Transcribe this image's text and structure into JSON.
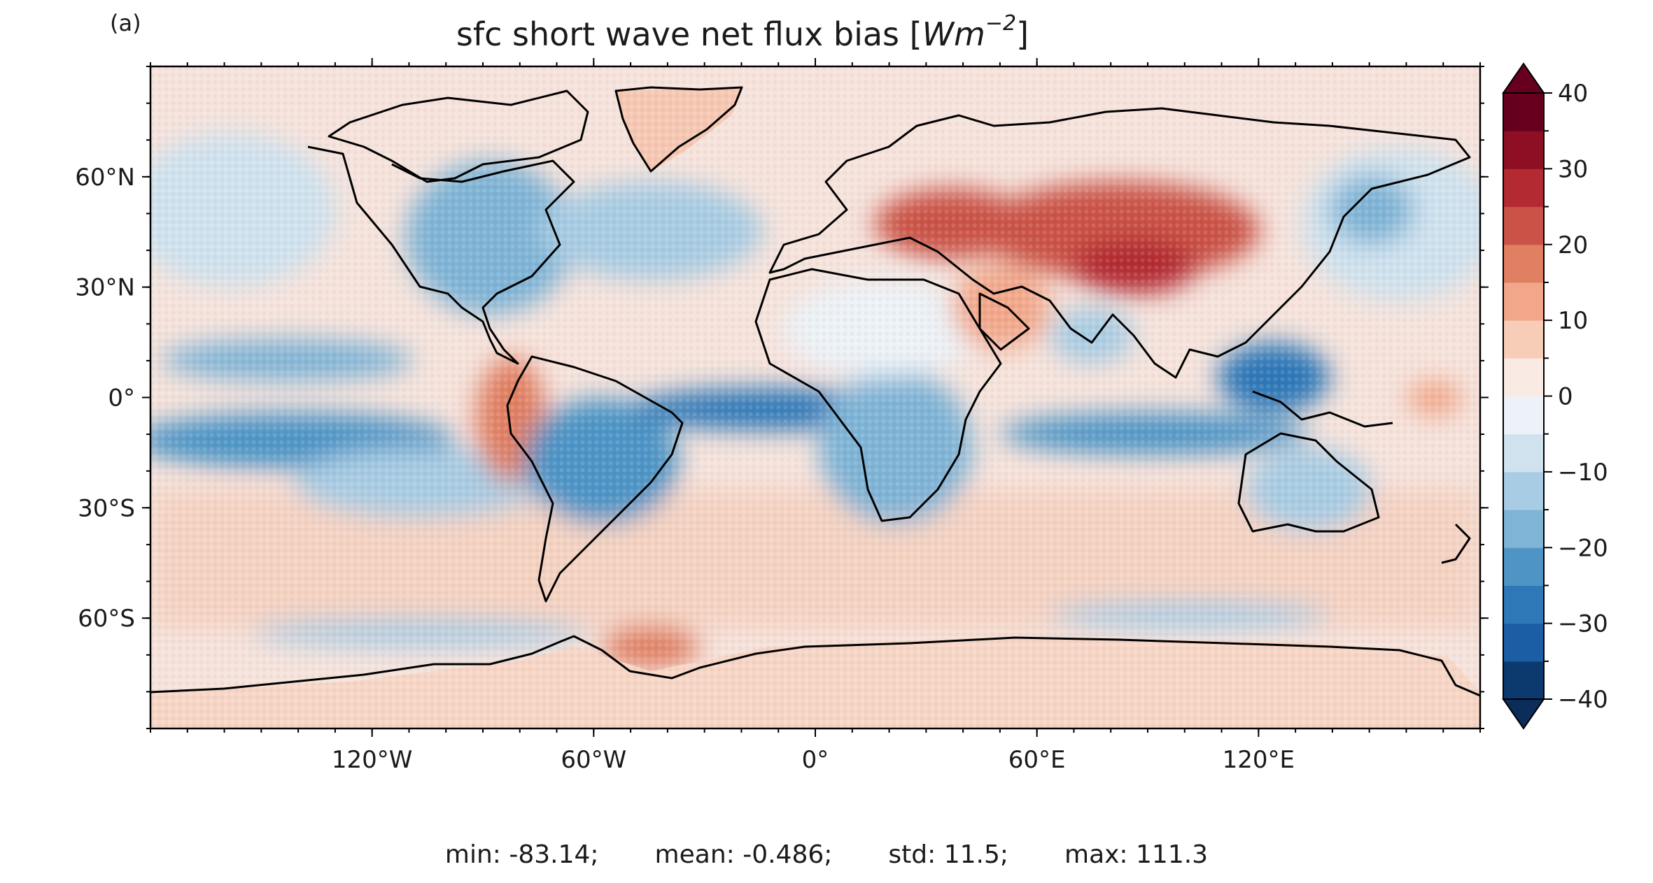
{
  "panel_label": "(a)",
  "title": {
    "text": "sfc short wave net flux bias [",
    "unit_base": "Wm",
    "unit_exp": "−2",
    "suffix": "]"
  },
  "stats": {
    "min": "min: -83.14;",
    "mean": "mean: -0.486;",
    "std": "std: 11.5;",
    "max": "max: 111.3"
  },
  "map": {
    "projection": "PlateCarree",
    "lon_range": [
      -180,
      180
    ],
    "lat_range": [
      -90,
      90
    ],
    "x_ticks": [
      {
        "value": -120,
        "label": "120°W"
      },
      {
        "value": -60,
        "label": "60°W"
      },
      {
        "value": 0,
        "label": "0°"
      },
      {
        "value": 60,
        "label": "60°E"
      },
      {
        "value": 120,
        "label": "120°E"
      }
    ],
    "y_ticks": [
      {
        "value": 60,
        "label": "60°N"
      },
      {
        "value": 30,
        "label": "30°N"
      },
      {
        "value": 0,
        "label": "0°"
      },
      {
        "value": -30,
        "label": "30°S"
      },
      {
        "value": -60,
        "label": "60°S"
      }
    ],
    "minor_tick_step": 10,
    "coastlines": true
  },
  "colorbar": {
    "cmap": "RdBu_r",
    "min": -40,
    "max": 40,
    "step": 5,
    "extend": "both",
    "ticks": [
      {
        "value": 40,
        "label": "40"
      },
      {
        "value": 30,
        "label": "30"
      },
      {
        "value": 20,
        "label": "20"
      },
      {
        "value": 10,
        "label": "10"
      },
      {
        "value": 0,
        "label": "0"
      },
      {
        "value": -10,
        "label": "−10"
      },
      {
        "value": -20,
        "label": "−20"
      },
      {
        "value": -30,
        "label": "−30"
      },
      {
        "value": -40,
        "label": "−40"
      }
    ],
    "colors": [
      "#0d3a6e",
      "#1b5ea5",
      "#2f78b8",
      "#4e95c6",
      "#7fb4d6",
      "#a8cce3",
      "#cfe2ee",
      "#ecf2f7",
      "#faeae4",
      "#f8cdb8",
      "#f2a78a",
      "#e07f62",
      "#cb5247",
      "#b32a32",
      "#8e0f23",
      "#67001f"
    ],
    "under_color": "#0a2d59",
    "over_color": "#67001f"
  },
  "regions": [
    {
      "name": "greenland",
      "value": 12
    },
    {
      "name": "antarctica",
      "value": 12
    },
    {
      "name": "asia-central",
      "value": 32
    },
    {
      "name": "tibet",
      "value": 36
    },
    {
      "name": "europe-east",
      "value": 28
    },
    {
      "name": "north-atlantic",
      "value": -14
    },
    {
      "name": "north-pacific",
      "value": -16
    },
    {
      "name": "equatorial-pacific",
      "value": -24
    },
    {
      "name": "equatorial-atlantic",
      "value": -26
    },
    {
      "name": "maritime-continent",
      "value": -28
    },
    {
      "name": "amazon",
      "value": -20
    },
    {
      "name": "central-africa",
      "value": -16
    },
    {
      "name": "southern-ocean",
      "value": -12
    },
    {
      "name": "stratocumulus-se-pacific",
      "value": 14
    },
    {
      "name": "arabia",
      "value": 16
    }
  ]
}
